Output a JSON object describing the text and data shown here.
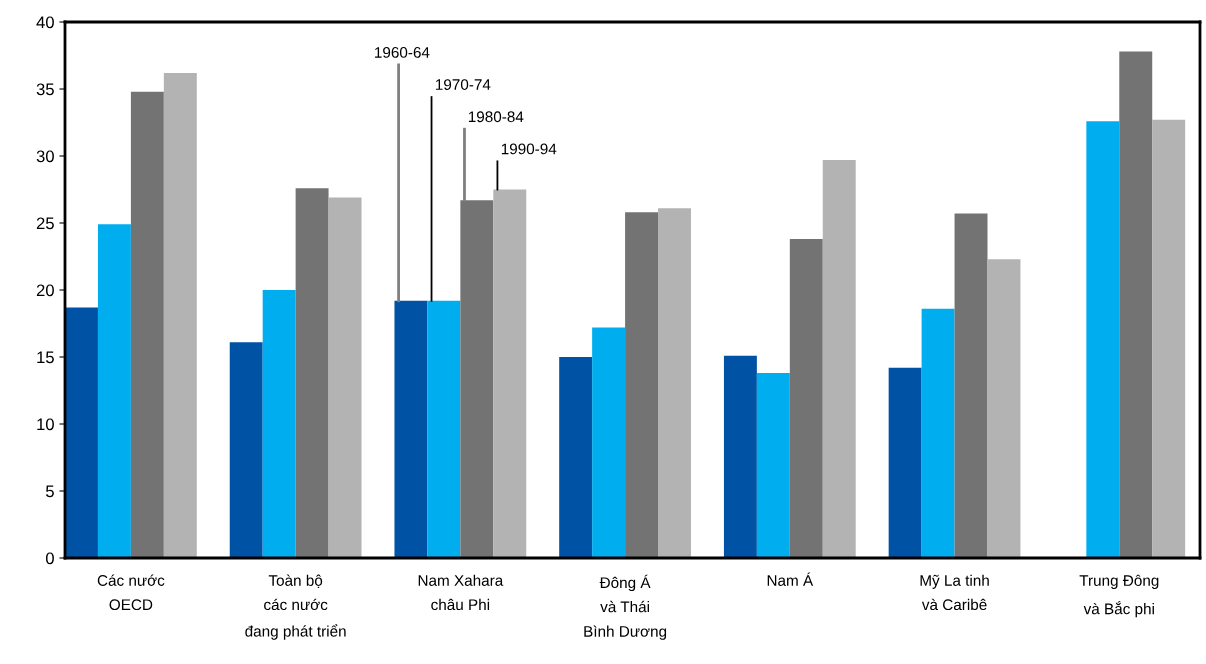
{
  "chart_data": {
    "type": "bar",
    "categories": [
      "Các nước\nOECD",
      "Toàn bộ\ncác nước\nđang phát triển",
      "Nam Xahara\nchâu Phi",
      "Đông Á\nvà Thái\nBình Dương",
      "Nam Á",
      "Mỹ La tinh\nvà Caribê",
      "Trung Đông\nvà Bắc phi"
    ],
    "series": [
      {
        "name": "1960-64",
        "color": "#0052a5",
        "values": [
          18.7,
          16.1,
          19.2,
          15.0,
          15.1,
          14.2,
          null
        ]
      },
      {
        "name": "1970-74",
        "color": "#00adef",
        "values": [
          24.9,
          20.0,
          19.2,
          17.2,
          13.8,
          18.6,
          32.6
        ]
      },
      {
        "name": "1980-84",
        "color": "#737373",
        "values": [
          34.8,
          27.6,
          26.7,
          25.8,
          23.8,
          25.7,
          37.8
        ]
      },
      {
        "name": "1990-94",
        "color": "#b3b3b3",
        "values": [
          36.2,
          26.9,
          27.5,
          26.1,
          29.7,
          22.3,
          32.7
        ]
      }
    ],
    "ylim": [
      0,
      40
    ],
    "yticks": [
      0,
      5,
      10,
      15,
      20,
      25,
      30,
      35,
      40
    ],
    "grid": false,
    "legend": false
  }
}
